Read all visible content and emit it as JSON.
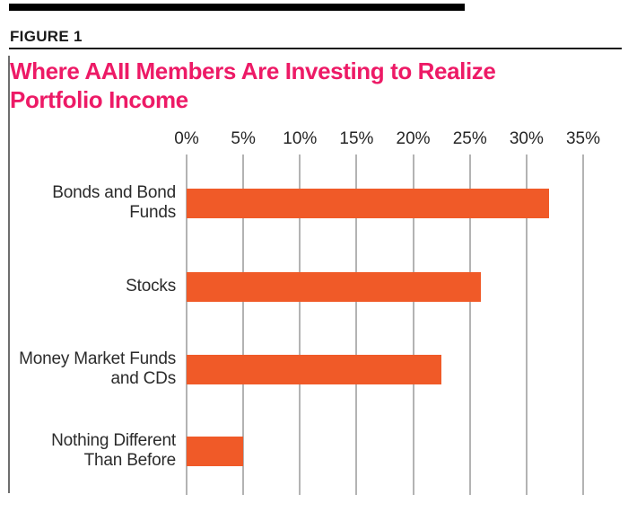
{
  "figure_label": "FIGURE 1",
  "title_line1": "Where AAII Members Are Investing to Realize",
  "title_line2": "Portfolio Income",
  "colors": {
    "title_text": "#ED1A66",
    "bar": "#F05A28",
    "gridline": "#b3b3b3",
    "axis_text": "#262626",
    "label_text": "#2b2b2b",
    "rule_black": "#1a1a1a",
    "side_rule_gray": "#6e6e6e"
  },
  "chart_data": {
    "type": "bar",
    "orientation": "horizontal",
    "title": "Where AAII Members Are Investing to Realize Portfolio Income",
    "categories": [
      [
        "Bonds and Bond",
        "Funds"
      ],
      [
        "Stocks"
      ],
      [
        "Money Market Funds",
        "and CDs"
      ],
      [
        "Nothing Different",
        "Than Before"
      ]
    ],
    "values": [
      32,
      26,
      22.5,
      5
    ],
    "x_ticks": [
      "0%",
      "5%",
      "10%",
      "15%",
      "20%",
      "25%",
      "30%",
      "35%"
    ],
    "xlim": [
      0,
      35
    ],
    "grid": true,
    "legend": "none",
    "bar_color": "#F05A28"
  }
}
